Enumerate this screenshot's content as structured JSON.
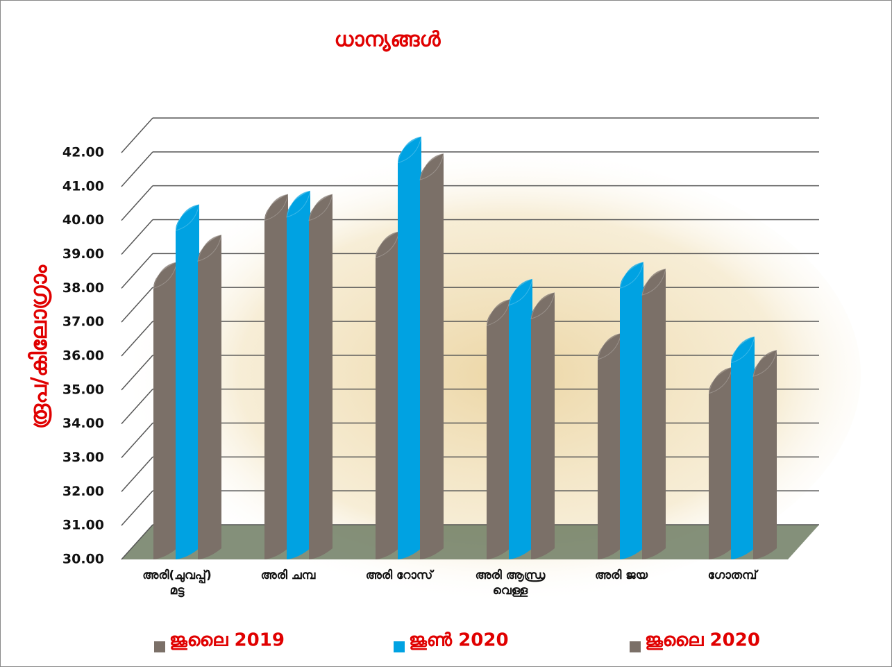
{
  "chart_data": {
    "type": "bar3d",
    "title": "ധാന്യങ്ങൾ",
    "y_label": "രൂപ/കിലോഗ്രാം",
    "categories": [
      "അരി(ചുവപ്പ്)\nമട്ട",
      "അരി ചമ്പ",
      "അരി റോസ്",
      "അരി ആന്ധ്ര\nവെള്ള",
      "അരി ജയ",
      "ഗോതമ്പ്"
    ],
    "series": [
      {
        "name": "ജൂലൈ   2019",
        "color": "#7b7068",
        "values": [
          38.0,
          40.0,
          38.9,
          36.9,
          35.9,
          34.9
        ]
      },
      {
        "name": "ജൂൺ     2020",
        "color": "#00a2e2",
        "values": [
          39.7,
          40.1,
          41.7,
          37.5,
          38.0,
          35.8
        ]
      },
      {
        "name": "ജൂലൈ    2020",
        "color": "#7b7068",
        "values": [
          38.8,
          40.0,
          41.2,
          37.1,
          37.8,
          35.4
        ]
      }
    ],
    "ylim": [
      30,
      42
    ],
    "yticks": [
      {
        "value": 30,
        "label": "30.00"
      },
      {
        "value": 31,
        "label": "31.00"
      },
      {
        "value": 32,
        "label": "32.00"
      },
      {
        "value": 33,
        "label": "33.00"
      },
      {
        "value": 34,
        "label": "34.00"
      },
      {
        "value": 35,
        "label": "35.00"
      },
      {
        "value": 36,
        "label": "36.00"
      },
      {
        "value": 37,
        "label": "37.00"
      },
      {
        "value": 38,
        "label": "38.00"
      },
      {
        "value": 39,
        "label": "39.00"
      },
      {
        "value": 40,
        "label": "40.00"
      },
      {
        "value": 41,
        "label": "41.00"
      },
      {
        "value": 42,
        "label": "42.00"
      }
    ],
    "grid": true
  }
}
